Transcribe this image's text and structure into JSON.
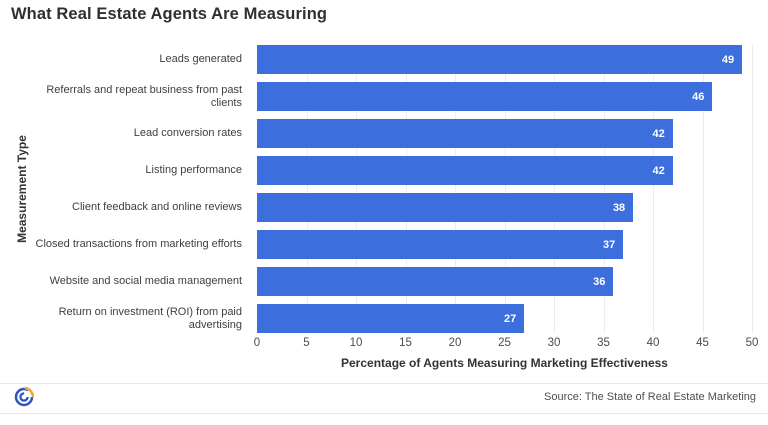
{
  "title": "What Real Estate Agents Are Measuring",
  "chart_data": {
    "type": "bar",
    "orientation": "horizontal",
    "title": "What Real Estate Agents Are Measuring",
    "categories": [
      "Leads generated",
      "Referrals and repeat business from past clients",
      "Lead conversion rates",
      "Listing performance",
      "Client feedback and online reviews",
      "Closed transactions from marketing efforts",
      "Website and social media management",
      "Return on investment (ROI) from paid advertising"
    ],
    "values": [
      49,
      46,
      42,
      42,
      38,
      37,
      36,
      27
    ],
    "xlabel": "Percentage of Agents Measuring Marketing Effectiveness",
    "ylabel": "Measurement Type",
    "xlim": [
      0,
      50
    ],
    "xticks": [
      0,
      5,
      10,
      15,
      20,
      25,
      30,
      35,
      40,
      45,
      50
    ],
    "grid": true,
    "legend": false,
    "bar_color": "#3d6edd",
    "value_label_color": "#ffffff",
    "gridline_color": "#ededed"
  },
  "footer": {
    "source": "Source: The State of Real Estate Marketing",
    "logo": "circular-swoosh-logo",
    "logo_blue": "#2e55c1",
    "logo_orange": "#f4a63a"
  }
}
